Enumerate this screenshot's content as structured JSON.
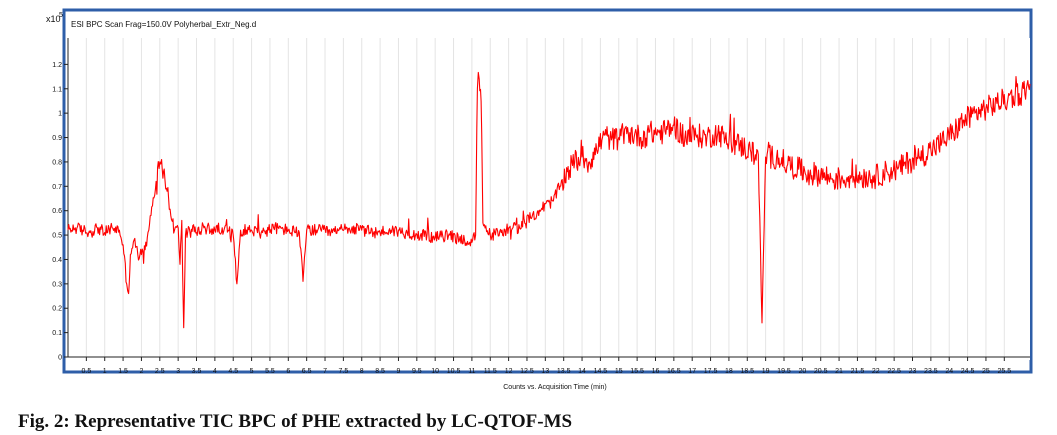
{
  "chart_data": {
    "type": "line",
    "series_header": "ESI BPC Scan Frag=150.0V Polyherbal_Extr_Neg.d",
    "y_multiplier": "x10",
    "y_exponent": "5",
    "xlabel": "Counts vs. Acquisition Time (min)",
    "ylabel": "",
    "xlim": [
      0,
      26.2
    ],
    "ylim": [
      0,
      1.3
    ],
    "x_ticks": [
      0.5,
      1,
      1.5,
      2,
      2.5,
      3,
      3.5,
      4,
      4.5,
      5,
      5.5,
      6,
      6.5,
      7,
      7.5,
      8,
      8.5,
      9,
      9.5,
      10,
      10.5,
      11,
      11.5,
      12,
      12.5,
      13,
      13.5,
      14,
      14.5,
      15,
      15.5,
      16,
      16.5,
      17,
      17.5,
      18,
      18.5,
      19,
      19.5,
      20,
      20.5,
      21,
      21.5,
      22,
      22.5,
      23,
      23.5,
      24,
      24.5,
      25,
      25.5
    ],
    "y_ticks": [
      0,
      0.1,
      0.2,
      0.3,
      0.4,
      0.5,
      0.6,
      0.7,
      0.8,
      0.9,
      1,
      1.1,
      1.2
    ],
    "series": [
      {
        "color": "#ff0000",
        "points": [
          [
            0,
            0.52
          ],
          [
            0.2,
            0.53
          ],
          [
            0.4,
            0.52
          ],
          [
            0.6,
            0.51
          ],
          [
            0.8,
            0.53
          ],
          [
            1.0,
            0.51
          ],
          [
            1.2,
            0.53
          ],
          [
            1.4,
            0.52
          ],
          [
            1.5,
            0.46
          ],
          [
            1.6,
            0.3
          ],
          [
            1.65,
            0.26
          ],
          [
            1.7,
            0.42
          ],
          [
            1.8,
            0.48
          ],
          [
            1.9,
            0.42
          ],
          [
            2.0,
            0.42
          ],
          [
            2.1,
            0.44
          ],
          [
            2.2,
            0.52
          ],
          [
            2.3,
            0.62
          ],
          [
            2.4,
            0.72
          ],
          [
            2.5,
            0.8
          ],
          [
            2.55,
            0.81
          ],
          [
            2.6,
            0.76
          ],
          [
            2.7,
            0.68
          ],
          [
            2.8,
            0.58
          ],
          [
            2.9,
            0.52
          ],
          [
            3.0,
            0.53
          ],
          [
            3.05,
            0.38
          ],
          [
            3.1,
            0.56
          ],
          [
            3.15,
            0.12
          ],
          [
            3.2,
            0.5
          ],
          [
            3.3,
            0.53
          ],
          [
            3.5,
            0.51
          ],
          [
            3.7,
            0.53
          ],
          [
            4.0,
            0.52
          ],
          [
            4.2,
            0.53
          ],
          [
            4.5,
            0.5
          ],
          [
            4.6,
            0.3
          ],
          [
            4.7,
            0.52
          ],
          [
            5.0,
            0.52
          ],
          [
            5.3,
            0.51
          ],
          [
            5.6,
            0.53
          ],
          [
            6.0,
            0.52
          ],
          [
            6.3,
            0.51
          ],
          [
            6.4,
            0.31
          ],
          [
            6.5,
            0.52
          ],
          [
            6.8,
            0.52
          ],
          [
            7.2,
            0.51
          ],
          [
            7.6,
            0.53
          ],
          [
            8.0,
            0.52
          ],
          [
            8.4,
            0.51
          ],
          [
            8.8,
            0.52
          ],
          [
            9.2,
            0.51
          ],
          [
            9.6,
            0.5
          ],
          [
            10.0,
            0.49
          ],
          [
            10.4,
            0.5
          ],
          [
            10.8,
            0.48
          ],
          [
            11.0,
            0.47
          ],
          [
            11.1,
            0.5
          ],
          [
            11.15,
            1.1
          ],
          [
            11.2,
            1.14
          ],
          [
            11.25,
            1.05
          ],
          [
            11.3,
            0.55
          ],
          [
            11.5,
            0.5
          ],
          [
            11.8,
            0.51
          ],
          [
            12.0,
            0.53
          ],
          [
            12.3,
            0.53
          ],
          [
            12.6,
            0.57
          ],
          [
            12.9,
            0.61
          ],
          [
            13.2,
            0.64
          ],
          [
            13.4,
            0.7
          ],
          [
            13.6,
            0.76
          ],
          [
            13.8,
            0.8
          ],
          [
            14.0,
            0.82
          ],
          [
            14.2,
            0.8
          ],
          [
            14.4,
            0.85
          ],
          [
            14.6,
            0.91
          ],
          [
            14.8,
            0.89
          ],
          [
            15.0,
            0.9
          ],
          [
            15.3,
            0.92
          ],
          [
            15.6,
            0.9
          ],
          [
            15.9,
            0.92
          ],
          [
            16.2,
            0.92
          ],
          [
            16.5,
            0.95
          ],
          [
            16.8,
            0.9
          ],
          [
            17.1,
            0.91
          ],
          [
            17.4,
            0.9
          ],
          [
            17.7,
            0.92
          ],
          [
            18.0,
            0.88
          ],
          [
            18.3,
            0.87
          ],
          [
            18.6,
            0.84
          ],
          [
            18.8,
            0.83
          ],
          [
            18.9,
            0.14
          ],
          [
            19.0,
            0.82
          ],
          [
            19.3,
            0.82
          ],
          [
            19.6,
            0.79
          ],
          [
            19.9,
            0.77
          ],
          [
            20.2,
            0.75
          ],
          [
            20.5,
            0.75
          ],
          [
            20.8,
            0.73
          ],
          [
            21.1,
            0.73
          ],
          [
            21.4,
            0.74
          ],
          [
            21.7,
            0.74
          ],
          [
            22.0,
            0.74
          ],
          [
            22.3,
            0.76
          ],
          [
            22.6,
            0.77
          ],
          [
            22.9,
            0.8
          ],
          [
            23.2,
            0.82
          ],
          [
            23.5,
            0.85
          ],
          [
            23.8,
            0.88
          ],
          [
            24.1,
            0.92
          ],
          [
            24.4,
            0.97
          ],
          [
            24.7,
            1.0
          ],
          [
            25.0,
            1.02
          ],
          [
            25.3,
            1.04
          ],
          [
            25.6,
            1.06
          ],
          [
            25.9,
            1.08
          ],
          [
            26.1,
            1.1
          ],
          [
            26.2,
            1.12
          ]
        ]
      }
    ]
  },
  "caption": "Fig. 2: Representative TIC BPC of PHE extracted by LC-QTOF-MS"
}
